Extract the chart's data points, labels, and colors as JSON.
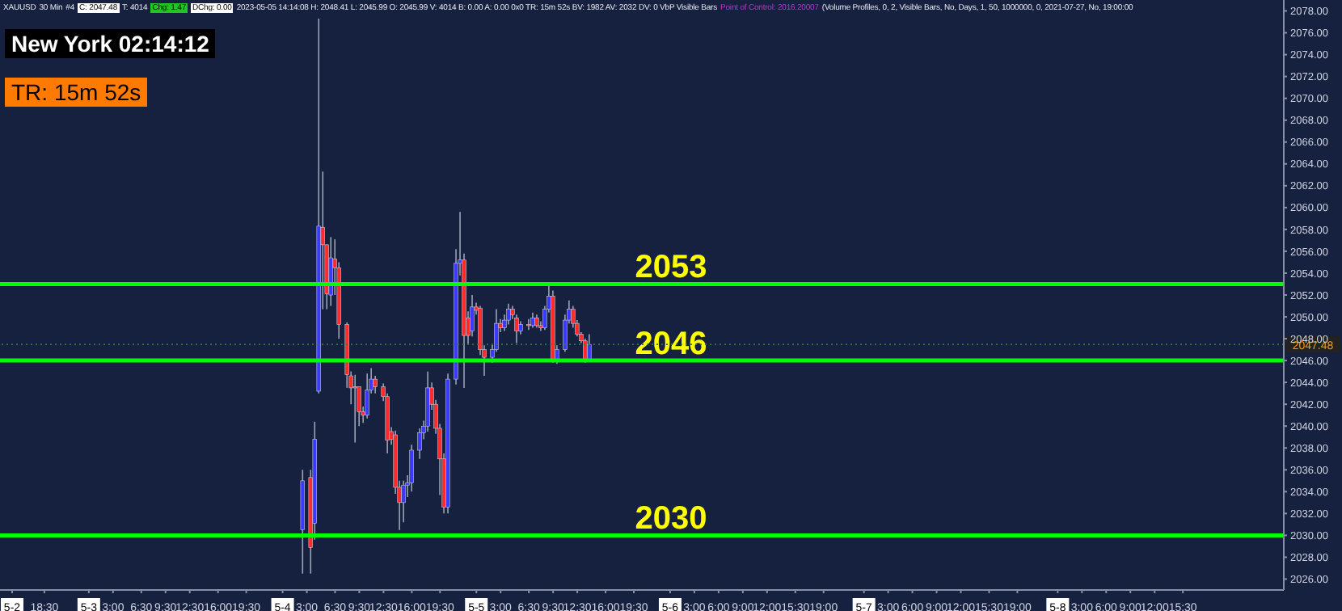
{
  "chart_data": {
    "type": "candlestick",
    "annotations": [
      "XAUUSD",
      "30 Min",
      "#4",
      "C: 2047.48",
      "T: 4014",
      "Chg: 1.47",
      "DChg: 0.00",
      "2023-05-05 14:14:08 H: 2048.41 L: 2045.99 O: 2045.99 V: 4014 B: 0.00 A: 0.00 0x0 TR: 15m 52s BV: 1982 AV: 2032 DV: 0 VbP Visible Bars",
      "Point of Control: 2016.20007",
      "(Volume Profiles, 0, 2, Visible Bars, No, Days, 1, 50, 1000000, 0, 2021-07-27, No, 19:00:00",
      "New York 02:14:12",
      "TR: 15m 52s"
    ],
    "x": [
      "2023-05-04T02:30",
      "2023-05-04T03:30",
      "2023-05-04T04:00",
      "2023-05-04T04:30",
      "2023-05-04T05:00",
      "2023-05-04T05:30",
      "2023-05-04T06:00",
      "2023-05-04T06:30",
      "2023-05-04T07:00",
      "2023-05-04T08:00",
      "2023-05-04T08:30",
      "2023-05-04T09:00",
      "2023-05-04T09:30",
      "2023-05-04T10:00",
      "2023-05-04T10:30",
      "2023-05-04T11:00",
      "2023-05-04T11:30",
      "2023-05-04T12:30",
      "2023-05-04T13:00",
      "2023-05-04T13:30",
      "2023-05-04T14:00",
      "2023-05-04T14:30",
      "2023-05-04T15:00",
      "2023-05-04T15:30",
      "2023-05-04T16:00",
      "2023-05-04T17:00",
      "2023-05-04T17:30",
      "2023-05-04T18:00",
      "2023-05-04T18:30",
      "2023-05-04T19:00",
      "2023-05-04T19:30",
      "2023-05-04T20:00",
      "2023-05-04T20:30",
      "2023-05-04T21:30",
      "2023-05-04T22:00",
      "2023-05-04T22:30",
      "2023-05-04T23:00",
      "2023-05-04T23:30",
      "2023-05-05T00:00",
      "2023-05-05T00:30",
      "2023-05-05T01:00",
      "2023-05-05T02:00",
      "2023-05-05T02:30",
      "2023-05-05T03:00",
      "2023-05-05T03:30",
      "2023-05-05T04:00",
      "2023-05-05T04:30",
      "2023-05-05T05:00",
      "2023-05-05T05:30",
      "2023-05-05T06:30",
      "2023-05-05T07:00",
      "2023-05-05T07:30",
      "2023-05-05T08:00",
      "2023-05-05T08:30",
      "2023-05-05T09:00",
      "2023-05-05T09:30",
      "2023-05-05T10:00",
      "2023-05-05T11:00",
      "2023-05-05T11:30",
      "2023-05-05T12:00",
      "2023-05-05T12:30",
      "2023-05-05T13:00",
      "2023-05-05T13:30",
      "2023-05-05T14:00"
    ],
    "ohlc": [
      [
        2030.5,
        2036.0,
        2026.5,
        2035.0
      ],
      [
        2035.3,
        2036.0,
        2026.5,
        2028.9
      ],
      [
        2031.1,
        2040.4,
        2029.6,
        2038.8
      ],
      [
        2043.2,
        2077.3,
        2043.0,
        2058.3
      ],
      [
        2058.2,
        2063.3,
        2050.7,
        2056.6
      ],
      [
        2056.6,
        2056.6,
        2050.7,
        2052.1
      ],
      [
        2052.0,
        2057.3,
        2051.0,
        2055.4
      ],
      [
        2055.3,
        2057.1,
        2052.0,
        2054.5
      ],
      [
        2054.5,
        2055.0,
        2048.0,
        2049.3
      ],
      [
        2049.3,
        2049.5,
        2043.5,
        2044.7
      ],
      [
        2044.6,
        2045.0,
        2042.0,
        2043.5
      ],
      [
        2043.6,
        2044.7,
        2038.5,
        2043.5
      ],
      [
        2043.6,
        2043.6,
        2040.0,
        2041.3
      ],
      [
        2041.3,
        2041.8,
        2040.3,
        2041.0
      ],
      [
        2041.0,
        2044.8,
        2040.7,
        2043.3
      ],
      [
        2043.3,
        2045.3,
        2043.0,
        2044.3
      ],
      [
        2044.3,
        2044.6,
        2043.0,
        2043.6
      ],
      [
        2043.6,
        2043.9,
        2042.3,
        2042.7
      ],
      [
        2042.7,
        2043.0,
        2037.5,
        2038.7
      ],
      [
        2039.5,
        2039.9,
        2038.3,
        2038.8
      ],
      [
        2039.2,
        2039.6,
        2033.8,
        2034.4
      ],
      [
        2034.4,
        2035.0,
        2030.5,
        2033.0
      ],
      [
        2033.0,
        2035.0,
        2031.2,
        2034.6
      ],
      [
        2034.6,
        2035.5,
        2033.5,
        2034.8
      ],
      [
        2034.8,
        2038.3,
        2034.0,
        2037.8
      ],
      [
        2037.8,
        2039.8,
        2037.0,
        2039.4
      ],
      [
        2039.4,
        2040.5,
        2038.8,
        2040.0
      ],
      [
        2040.0,
        2045.0,
        2039.5,
        2043.5
      ],
      [
        2043.5,
        2044.0,
        2041.5,
        2042.0
      ],
      [
        2042.0,
        2042.4,
        2039.3,
        2039.8
      ],
      [
        2039.8,
        2040.2,
        2033.7,
        2037.0
      ],
      [
        2037.0,
        2037.5,
        2032.0,
        2032.6
      ],
      [
        2032.6,
        2044.8,
        2032.0,
        2044.3
      ],
      [
        2044.3,
        2056.2,
        2043.8,
        2054.9
      ],
      [
        2054.9,
        2059.6,
        2053.8,
        2055.2
      ],
      [
        2055.2,
        2055.8,
        2043.5,
        2048.3
      ],
      [
        2049.9,
        2050.5,
        2047.5,
        2048.3
      ],
      [
        2048.7,
        2052.0,
        2048.2,
        2050.9
      ],
      [
        2050.9,
        2051.3,
        2050.2,
        2050.6
      ],
      [
        2050.8,
        2051.0,
        2046.5,
        2047.0
      ],
      [
        2047.0,
        2047.4,
        2044.6,
        2046.3
      ],
      [
        2046.3,
        2047.5,
        2045.8,
        2047.0
      ],
      [
        2047.0,
        2050.7,
        2046.8,
        2049.4
      ],
      [
        2049.4,
        2049.8,
        2048.6,
        2049.0
      ],
      [
        2049.0,
        2050.2,
        2048.7,
        2049.7
      ],
      [
        2049.7,
        2051.2,
        2049.3,
        2050.7
      ],
      [
        2050.7,
        2051.0,
        2049.8,
        2050.2
      ],
      [
        2049.9,
        2050.2,
        2047.6,
        2048.7
      ],
      [
        2048.7,
        2049.6,
        2048.4,
        2049.3
      ],
      [
        2049.3,
        2049.8,
        2048.8,
        2049.2
      ],
      [
        2049.2,
        2050.4,
        2049.0,
        2049.9
      ],
      [
        2049.9,
        2050.2,
        2049.0,
        2049.2
      ],
      [
        2049.2,
        2049.6,
        2048.7,
        2049.0
      ],
      [
        2049.0,
        2051.0,
        2048.8,
        2050.7
      ],
      [
        2050.7,
        2053.0,
        2050.4,
        2051.9
      ],
      [
        2051.9,
        2052.4,
        2045.8,
        2046.0
      ],
      [
        2046.0,
        2047.4,
        2045.7,
        2047.0
      ],
      [
        2047.0,
        2050.2,
        2046.8,
        2049.7
      ],
      [
        2049.7,
        2051.5,
        2049.4,
        2050.7
      ],
      [
        2050.7,
        2051.0,
        2049.0,
        2049.4
      ],
      [
        2049.4,
        2049.7,
        2048.2,
        2048.4
      ],
      [
        2048.4,
        2048.6,
        2047.6,
        2047.8
      ],
      [
        2047.8,
        2048.0,
        2045.8,
        2046.0
      ],
      [
        2045.99,
        2048.41,
        2045.99,
        2047.48
      ]
    ],
    "colors": [
      "#3a3aff",
      "#ff2a2a",
      "#3a3aff",
      "#3a3aff",
      "#ff2a2a",
      "#ff2a2a",
      "#3a3aff",
      "#ff2a2a",
      "#ff2a2a",
      "#ff2a2a",
      "#ff2a2a",
      "#ff2a2a",
      "#ff2a2a",
      "#ff2a2a",
      "#3a3aff",
      "#3a3aff",
      "#ff2a2a",
      "#ff2a2a",
      "#ff2a2a",
      "#ff2a2a",
      "#ff2a2a",
      "#ff2a2a",
      "#3a3aff",
      "#3a3aff",
      "#3a3aff",
      "#3a3aff",
      "#3a3aff",
      "#3a3aff",
      "#ff2a2a",
      "#ff2a2a",
      "#ff2a2a",
      "#ff2a2a",
      "#3a3aff",
      "#3a3aff",
      "#3a3aff",
      "#ff2a2a",
      "#ff2a2a",
      "#3a3aff",
      "#ff2a2a",
      "#ff2a2a",
      "#ff2a2a",
      "#3a3aff",
      "#3a3aff",
      "#ff2a2a",
      "#3a3aff",
      "#3a3aff",
      "#ff2a2a",
      "#ff2a2a",
      "#3a3aff",
      "#ff2a2a",
      "#3a3aff",
      "#ff2a2a",
      "#ff2a2a",
      "#3a3aff",
      "#3a3aff",
      "#ff2a2a",
      "#3a3aff",
      "#3a3aff",
      "#3a3aff",
      "#ff2a2a",
      "#ff2a2a",
      "#ff2a2a",
      "#ff2a2a",
      "#3a3aff"
    ],
    "xlim": [
      "2023-05-02T13:00",
      "2023-05-09T04:00"
    ],
    "xticks": [
      {
        "value": "2023-05-02T14:30",
        "label": "5-2"
      },
      {
        "value": "2023-05-02T18:30",
        "label": "18:30"
      },
      {
        "value": "2023-05-03T00:00",
        "label": "5-3"
      },
      {
        "value": "2023-05-03T03:00",
        "label": "3:00"
      },
      {
        "value": "2023-05-03T06:30",
        "label": "6:30"
      },
      {
        "value": "2023-05-03T09:30",
        "label": "9:30"
      },
      {
        "value": "2023-05-03T12:30",
        "label": "12:30"
      },
      {
        "value": "2023-05-03T16:00",
        "label": "16:00"
      },
      {
        "value": "2023-05-03T19:30",
        "label": "19:30"
      },
      {
        "value": "2023-05-04T00:00",
        "label": "5-4"
      },
      {
        "value": "2023-05-04T03:00",
        "label": "3:00"
      },
      {
        "value": "2023-05-04T06:30",
        "label": "6:30"
      },
      {
        "value": "2023-05-04T09:30",
        "label": "9:30"
      },
      {
        "value": "2023-05-04T12:30",
        "label": "12:30"
      },
      {
        "value": "2023-05-04T16:00",
        "label": "16:00"
      },
      {
        "value": "2023-05-04T19:30",
        "label": "19:30"
      },
      {
        "value": "2023-05-05T00:00",
        "label": "5-5"
      },
      {
        "value": "2023-05-05T03:00",
        "label": "3:00"
      },
      {
        "value": "2023-05-05T06:30",
        "label": "6:30"
      },
      {
        "value": "2023-05-05T09:30",
        "label": "9:30"
      },
      {
        "value": "2023-05-05T12:30",
        "label": "12:30"
      },
      {
        "value": "2023-05-05T16:00",
        "label": "16:00"
      },
      {
        "value": "2023-05-05T19:30",
        "label": "19:30"
      },
      {
        "value": "2023-05-06T00:00",
        "label": "5-6"
      },
      {
        "value": "2023-05-06T03:00",
        "label": "3:00"
      },
      {
        "value": "2023-05-06T06:00",
        "label": "6:00"
      },
      {
        "value": "2023-05-06T09:00",
        "label": "9:00"
      },
      {
        "value": "2023-05-06T12:00",
        "label": "12:00"
      },
      {
        "value": "2023-05-06T15:30",
        "label": "15:30"
      },
      {
        "value": "2023-05-06T19:00",
        "label": "19:00"
      },
      {
        "value": "2023-05-07T00:00",
        "label": "5-7"
      },
      {
        "value": "2023-05-07T03:00",
        "label": "3:00"
      },
      {
        "value": "2023-05-07T06:00",
        "label": "6:00"
      },
      {
        "value": "2023-05-07T09:00",
        "label": "9:00"
      },
      {
        "value": "2023-05-07T12:00",
        "label": "12:00"
      },
      {
        "value": "2023-05-07T15:30",
        "label": "15:30"
      },
      {
        "value": "2023-05-07T19:00",
        "label": "19:00"
      },
      {
        "value": "2023-05-08T00:00",
        "label": "5-8"
      },
      {
        "value": "2023-05-08T03:00",
        "label": "3:00"
      },
      {
        "value": "2023-05-08T06:00",
        "label": "6:00"
      },
      {
        "value": "2023-05-08T09:00",
        "label": "9:00"
      },
      {
        "value": "2023-05-08T12:00",
        "label": "12:00"
      },
      {
        "value": "2023-05-08T15:30",
        "label": "15:30"
      }
    ],
    "ylim": [
      2025,
      2079
    ],
    "yticks": [
      {
        "value": 2026,
        "label": "2026.00"
      },
      {
        "value": 2028,
        "label": "2028.00"
      },
      {
        "value": 2030,
        "label": "2030.00"
      },
      {
        "value": 2032,
        "label": "2032.00"
      },
      {
        "value": 2034,
        "label": "2034.00"
      },
      {
        "value": 2036,
        "label": "2036.00"
      },
      {
        "value": 2038,
        "label": "2038.00"
      },
      {
        "value": 2040,
        "label": "2040.00"
      },
      {
        "value": 2042,
        "label": "2042.00"
      },
      {
        "value": 2044,
        "label": "2044.00"
      },
      {
        "value": 2046,
        "label": "2046.00"
      },
      {
        "value": 2048,
        "label": "2048.00"
      },
      {
        "value": 2050,
        "label": "2050.00"
      },
      {
        "value": 2052,
        "label": "2052.00"
      },
      {
        "value": 2054,
        "label": "2054.00"
      },
      {
        "value": 2056,
        "label": "2056.00"
      },
      {
        "value": 2058,
        "label": "2058.00"
      },
      {
        "value": 2060,
        "label": "2060.00"
      },
      {
        "value": 2062,
        "label": "2062.00"
      },
      {
        "value": 2064,
        "label": "2064.00"
      },
      {
        "value": 2066,
        "label": "2066.00"
      },
      {
        "value": 2068,
        "label": "2068.00"
      },
      {
        "value": 2070,
        "label": "2070.00"
      },
      {
        "value": 2072,
        "label": "2072.00"
      },
      {
        "value": 2074,
        "label": "2074.00"
      },
      {
        "value": 2076,
        "label": "2076.00"
      },
      {
        "value": 2078,
        "label": "2078.00"
      }
    ],
    "ref_lines": [
      {
        "axis": "y",
        "value": 2053,
        "label": "2053",
        "color": "#00ff00",
        "line_style": "solid"
      },
      {
        "axis": "y",
        "value": 2046,
        "label": "2046",
        "color": "#00ff00",
        "line_style": "solid"
      },
      {
        "axis": "y",
        "value": 2030,
        "label": "2030",
        "color": "#00ff00",
        "line_style": "solid"
      },
      {
        "axis": "y",
        "value": 2047.48,
        "label": "2047.48",
        "color": "#2f7a3f",
        "line_style": "dotted"
      }
    ]
  }
}
